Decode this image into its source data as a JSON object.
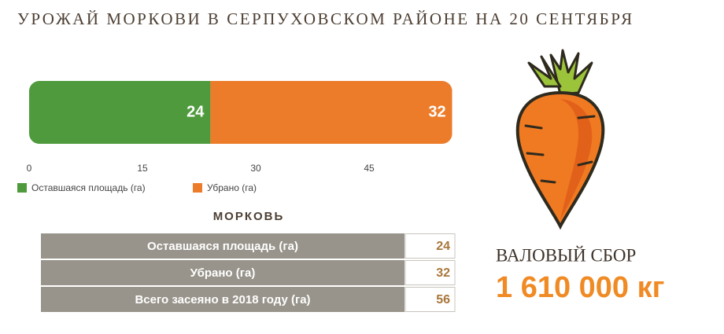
{
  "chart_data": {
    "type": "bar",
    "orientation": "horizontal",
    "stacked": true,
    "title": "УРОЖАЙ МОРКОВИ В СЕРПУХОВСКОМ РАЙОНЕ НА 20 СЕНТЯБРЯ",
    "categories": [
      null
    ],
    "series": [
      {
        "name": "Оставшаяся площадь (га)",
        "color": "#4e9a3c",
        "values": [
          24
        ]
      },
      {
        "name": "Убрано (га)",
        "color": "#ec7c2a",
        "values": [
          32
        ]
      }
    ],
    "xlim": [
      0,
      56
    ],
    "xticks": [
      0,
      15,
      30,
      45
    ]
  },
  "table": {
    "title": "МОРКОВЬ",
    "rows": [
      [
        "Оставшаяся площадь (га)",
        "24"
      ],
      [
        "Убрано (га)",
        "32"
      ],
      [
        "Всего засеяно в 2018 году (га)",
        "56"
      ]
    ]
  },
  "total": {
    "label": "ВАЛОВЫЙ СБОР",
    "value": "1 610 000 кг"
  }
}
